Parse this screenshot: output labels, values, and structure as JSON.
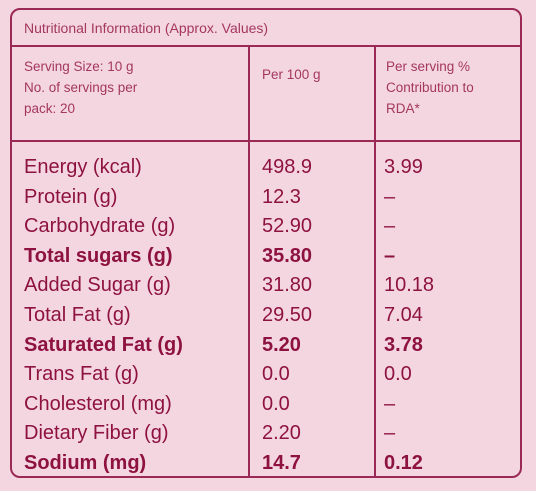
{
  "table": {
    "title": "Nutritional Information (Approx. Values)",
    "header": {
      "serving_info_lines": [
        "Serving Size: 10 g",
        "No. of servings per",
        "pack: 20"
      ],
      "per_100g": "Per 100 g",
      "rda_lines": [
        "Per serving %",
        "Contribution to",
        "RDA*"
      ]
    },
    "rows": [
      {
        "nutrient": "Energy (kcal)",
        "per_100g": "498.9",
        "rda": "3.99",
        "bold": false
      },
      {
        "nutrient": "Protein (g)",
        "per_100g": "12.3",
        "rda": "–",
        "bold": false
      },
      {
        "nutrient": "Carbohydrate (g)",
        "per_100g": "52.90",
        "rda": "–",
        "bold": false
      },
      {
        "nutrient": "Total sugars (g)",
        "per_100g": "35.80",
        "rda": "–",
        "bold": true
      },
      {
        "nutrient": "Added Sugar (g)",
        "per_100g": "31.80",
        "rda": "10.18",
        "bold": false
      },
      {
        "nutrient": "Total Fat (g)",
        "per_100g": "29.50",
        "rda": "7.04",
        "bold": false
      },
      {
        "nutrient": "Saturated Fat (g)",
        "per_100g": "5.20",
        "rda": "3.78",
        "bold": true
      },
      {
        "nutrient": "Trans Fat (g)",
        "per_100g": "0.0",
        "rda": "0.0",
        "bold": false
      },
      {
        "nutrient": "Cholesterol (mg)",
        "per_100g": "0.0",
        "rda": "–",
        "bold": false
      },
      {
        "nutrient": "Dietary Fiber (g)",
        "per_100g": "2.20",
        "rda": "–",
        "bold": false
      },
      {
        "nutrient": "Sodium (mg)",
        "per_100g": "14.7",
        "rda": "0.12",
        "bold": true
      }
    ]
  }
}
